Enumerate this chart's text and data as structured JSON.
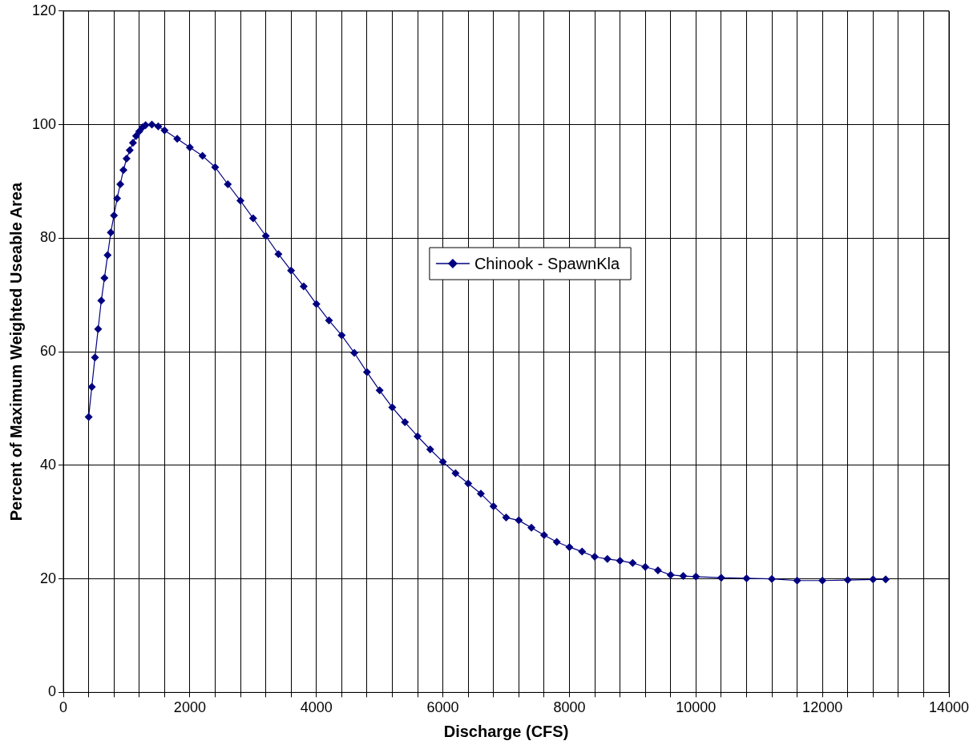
{
  "chart_data": {
    "type": "line",
    "xlabel": "Discharge (CFS)",
    "ylabel": "Percent of Maximum Weighted Useable Area",
    "xlim": [
      0,
      14000
    ],
    "xticks": [
      0,
      {
        "value": 400,
        "label": null
      },
      {
        "value": 800,
        "label": null
      },
      {
        "value": 1200,
        "label": null
      },
      {
        "value": 1600,
        "label": null
      },
      2000,
      {
        "value": 2400,
        "label": null
      },
      {
        "value": 2800,
        "label": null
      },
      {
        "value": 3200,
        "label": null
      },
      {
        "value": 3600,
        "label": null
      },
      4000,
      {
        "value": 4400,
        "label": null
      },
      {
        "value": 4800,
        "label": null
      },
      {
        "value": 5200,
        "label": null
      },
      {
        "value": 5600,
        "label": null
      },
      6000,
      {
        "value": 6400,
        "label": null
      },
      {
        "value": 6800,
        "label": null
      },
      {
        "value": 7200,
        "label": null
      },
      {
        "value": 7600,
        "label": null
      },
      8000,
      {
        "value": 8400,
        "label": null
      },
      {
        "value": 8800,
        "label": null
      },
      {
        "value": 9200,
        "label": null
      },
      {
        "value": 9600,
        "label": null
      },
      10000,
      {
        "value": 10400,
        "label": null
      },
      {
        "value": 10800,
        "label": null
      },
      {
        "value": 11200,
        "label": null
      },
      {
        "value": 11600,
        "label": null
      },
      12000,
      {
        "value": 12400,
        "label": null
      },
      {
        "value": 12800,
        "label": null
      },
      {
        "value": 13200,
        "label": null
      },
      {
        "value": 13600,
        "label": null
      },
      14000
    ],
    "ylim": [
      0,
      120
    ],
    "yticks": [
      0,
      20,
      40,
      60,
      80,
      100,
      120
    ],
    "grid": true,
    "legend": "center",
    "marker": "diamond",
    "line_style": "solid",
    "series": [
      {
        "name": "Chinook - SpawnKla",
        "color": "#000080",
        "x": [
          400,
          450,
          500,
          550,
          600,
          650,
          700,
          750,
          800,
          850,
          900,
          950,
          1000,
          1050,
          1100,
          1150,
          1200,
          1250,
          1300,
          1400,
          1500,
          1600,
          1800,
          2000,
          2200,
          2400,
          2600,
          2800,
          3000,
          3200,
          3400,
          3600,
          3800,
          4000,
          4200,
          4400,
          4600,
          4800,
          5000,
          5200,
          5400,
          5600,
          5800,
          6000,
          6200,
          6400,
          6600,
          6800,
          7000,
          7200,
          7400,
          7600,
          7800,
          8000,
          8200,
          8400,
          8600,
          8800,
          9000,
          9200,
          9400,
          9600,
          9800,
          10000,
          10400,
          10800,
          11200,
          11600,
          12000,
          12400,
          12800,
          13000
        ],
        "values": [
          48.5,
          53.8,
          59,
          64,
          69,
          73,
          77,
          81,
          84,
          87,
          89.5,
          92,
          94,
          95.5,
          96.8,
          98,
          98.8,
          99.5,
          99.9,
          100,
          99.7,
          99,
          97.5,
          96,
          94.5,
          92.5,
          89.5,
          86.6,
          83.5,
          80.4,
          77.2,
          74.3,
          71.5,
          68.4,
          65.5,
          62.9,
          59.8,
          56.4,
          53.2,
          50.2,
          47.6,
          45.1,
          42.8,
          40.6,
          38.6,
          36.8,
          35,
          32.8,
          30.8,
          30.3,
          29,
          27.7,
          26.5,
          25.6,
          24.8,
          23.9,
          23.5,
          23.2,
          22.8,
          22.1,
          21.5,
          20.7,
          20.5,
          20.4,
          20.2,
          20.1,
          20,
          19.7,
          19.7,
          19.8,
          19.9,
          19.9
        ]
      }
    ]
  }
}
